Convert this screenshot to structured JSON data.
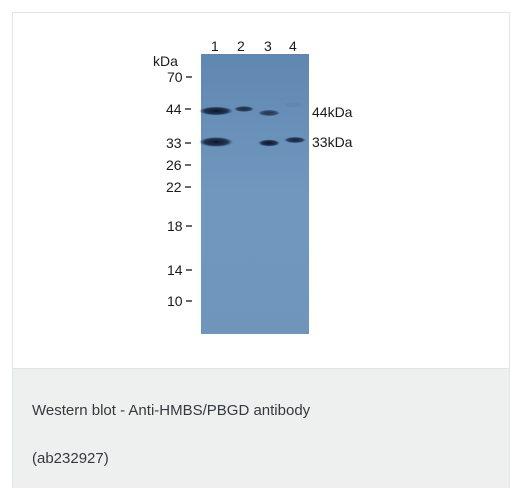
{
  "figure": {
    "image_description": "Western blot membrane with four lanes and molecular weight ladder",
    "units_label": "kDa",
    "lanes": [
      "1",
      "2",
      "3",
      "4"
    ],
    "ladder": [
      "70",
      "44",
      "33",
      "26",
      "22",
      "18",
      "14",
      "10"
    ],
    "band_labels": [
      "44kDa",
      "33kDa"
    ],
    "colors": {
      "membrane": "#6e93b8",
      "membrane_light": "#7ea1c4",
      "band": "#16223a"
    }
  },
  "caption": {
    "line1": "Western blot - Anti-HMBS/PBGD antibody",
    "line2": "(ab232927)"
  }
}
